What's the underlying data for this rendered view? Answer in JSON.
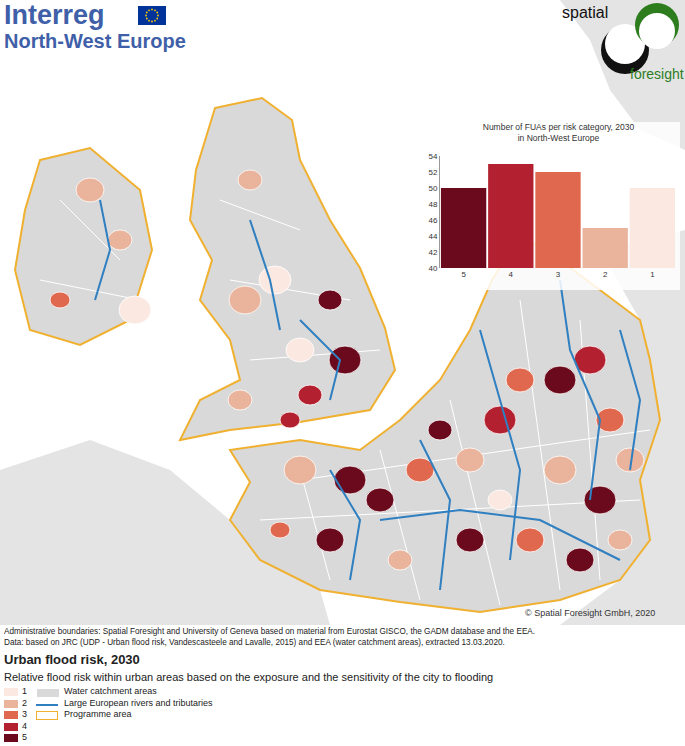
{
  "header": {
    "logo": "Interreg",
    "logo_subtitle": "North-West Europe",
    "brand_top": "spatial",
    "brand_bottom": "foresight"
  },
  "map": {
    "copyright": "© Spatial Foresight GmbH, 2020"
  },
  "chart_data": {
    "type": "bar",
    "title": "Number of FUAs per risk category, 2030",
    "subtitle": "in North-West Europe",
    "categories": [
      "5",
      "4",
      "3",
      "2",
      "1"
    ],
    "values": [
      50,
      53,
      52,
      45,
      50
    ],
    "colors": [
      "#6b0a1c",
      "#b3202f",
      "#e0684e",
      "#e9b39c",
      "#fbe9e1"
    ],
    "ylim": [
      40,
      54
    ],
    "yticks": [
      40,
      42,
      44,
      46,
      48,
      50,
      52,
      54
    ],
    "grid": false
  },
  "source": [
    "Administrative boundaries: Spatial Foresight and University of Geneva based on material from Eurostat GISCO, the GADM database and the EEA.",
    "Data: based on JRC (UDP - Urban flood risk, Vandescasteele and Lavalle, 2015) and EEA (water catchment areas), extracted 13.03.2020."
  ],
  "legend": {
    "title": "Urban flood risk, 2030",
    "subtitle": "Relative flood risk within urban areas based on the exposure and the sensitivity of the city to flooding",
    "classes": [
      {
        "label": "1",
        "color": "#fbe9e1"
      },
      {
        "label": "2",
        "color": "#e9b39c"
      },
      {
        "label": "3",
        "color": "#e0684e"
      },
      {
        "label": "4",
        "color": "#b3202f"
      },
      {
        "label": "5",
        "color": "#6b0a1c"
      }
    ],
    "items": [
      {
        "label": "Water catchment areas",
        "color": "#d9d9d9"
      },
      {
        "label": "Large European rivers and tributaries",
        "color": "#2f7fc1"
      },
      {
        "label": "Programme area",
        "color": "#f0b030"
      }
    ]
  }
}
